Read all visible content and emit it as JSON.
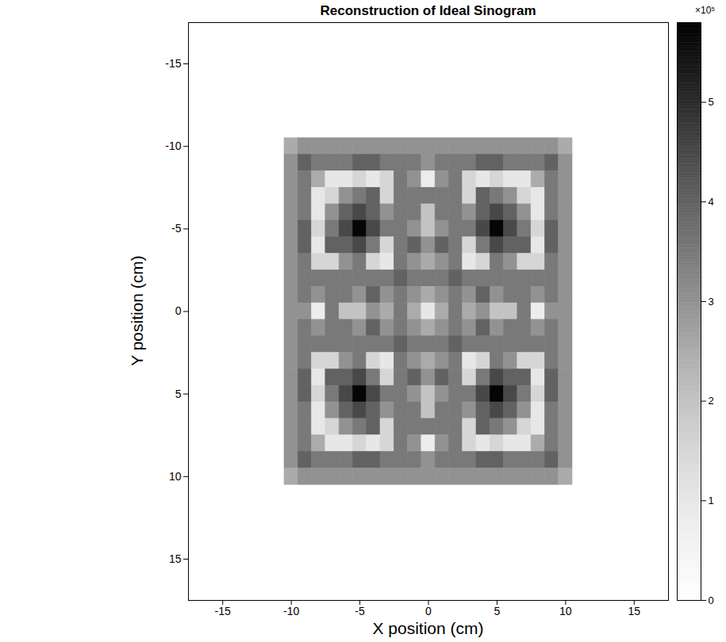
{
  "chart_data": {
    "type": "heatmap",
    "title": "Reconstruction of Ideal Sinogram",
    "x_label": "X position (cm)",
    "y_label": "Y position (cm)",
    "xlim": [
      -17.5,
      17.5
    ],
    "ylim": [
      17.5,
      -17.5
    ],
    "xticks": [
      -15,
      -10,
      -5,
      0,
      5,
      10,
      15
    ],
    "yticks": [
      -15,
      -10,
      -5,
      0,
      5,
      10,
      15
    ],
    "x_edges": [
      -10.5,
      -9.5,
      -8.5,
      -7.5,
      -6.5,
      -5.5,
      -4.5,
      -3.5,
      -2.5,
      -1.5,
      -0.5,
      0.5,
      1.5,
      2.5,
      3.5,
      4.5,
      5.5,
      6.5,
      7.5,
      8.5,
      9.5,
      10.5
    ],
    "y_edges": [
      -10.5,
      -9.5,
      -8.5,
      -7.5,
      -6.5,
      -5.5,
      -4.5,
      -3.5,
      -2.5,
      -1.5,
      -0.5,
      0.5,
      1.5,
      2.5,
      3.5,
      4.5,
      5.5,
      6.5,
      7.5,
      8.5,
      9.5,
      10.5
    ],
    "values": [
      [
        2.5,
        3.0,
        3.0,
        3.0,
        3.0,
        3.0,
        3.0,
        3.0,
        3.0,
        3.0,
        3.0,
        3.0,
        3.0,
        3.0,
        3.0,
        3.0,
        3.0,
        3.0,
        3.0,
        3.0,
        2.5
      ],
      [
        3.0,
        4.0,
        3.5,
        3.5,
        3.5,
        4.0,
        4.0,
        3.5,
        3.5,
        3.5,
        3.0,
        3.5,
        3.5,
        3.5,
        4.0,
        4.0,
        3.5,
        3.5,
        3.5,
        4.0,
        3.0
      ],
      [
        3.0,
        3.5,
        2.5,
        1.0,
        1.0,
        1.5,
        1.0,
        1.5,
        3.5,
        3.0,
        0.8,
        3.0,
        3.5,
        1.5,
        1.0,
        1.5,
        1.0,
        1.0,
        2.5,
        3.5,
        3.0
      ],
      [
        3.0,
        3.5,
        1.0,
        1.5,
        3.0,
        3.5,
        4.0,
        1.5,
        3.5,
        3.5,
        3.5,
        3.5,
        3.5,
        1.5,
        4.0,
        3.5,
        3.0,
        1.5,
        1.0,
        3.5,
        3.0
      ],
      [
        3.0,
        3.5,
        1.0,
        3.0,
        4.0,
        4.5,
        4.0,
        3.0,
        3.5,
        3.5,
        2.0,
        3.5,
        3.5,
        3.0,
        4.0,
        4.5,
        4.0,
        3.0,
        1.0,
        3.5,
        3.0
      ],
      [
        3.0,
        4.0,
        1.5,
        3.5,
        4.5,
        5.7,
        4.5,
        3.5,
        3.5,
        3.0,
        2.0,
        3.0,
        3.5,
        3.5,
        4.5,
        5.7,
        4.5,
        3.5,
        1.5,
        4.0,
        3.0
      ],
      [
        3.0,
        4.0,
        1.0,
        4.0,
        4.0,
        4.5,
        3.5,
        1.5,
        3.5,
        4.0,
        3.0,
        4.0,
        3.5,
        1.5,
        3.5,
        4.5,
        4.0,
        4.0,
        1.0,
        4.0,
        3.0
      ],
      [
        3.0,
        3.5,
        1.5,
        1.5,
        3.0,
        3.5,
        1.5,
        1.0,
        3.5,
        3.0,
        2.5,
        3.0,
        3.5,
        1.0,
        1.5,
        3.5,
        3.0,
        1.5,
        1.5,
        3.5,
        3.0
      ],
      [
        3.0,
        3.5,
        3.5,
        3.5,
        3.5,
        3.5,
        3.5,
        3.5,
        4.0,
        3.5,
        3.5,
        3.5,
        4.0,
        3.5,
        3.5,
        3.5,
        3.5,
        3.5,
        3.5,
        3.5,
        3.0
      ],
      [
        3.0,
        3.5,
        3.0,
        3.5,
        3.5,
        3.0,
        4.0,
        3.0,
        3.5,
        3.0,
        2.5,
        3.0,
        3.5,
        3.0,
        4.0,
        3.0,
        3.5,
        3.5,
        3.0,
        3.5,
        3.0
      ],
      [
        3.0,
        3.0,
        0.8,
        3.5,
        2.0,
        2.0,
        3.0,
        2.5,
        3.5,
        2.5,
        1.0,
        2.5,
        3.5,
        2.5,
        3.0,
        2.0,
        2.0,
        3.5,
        0.8,
        3.0,
        3.0
      ],
      [
        3.0,
        3.5,
        3.0,
        3.5,
        3.5,
        3.0,
        4.0,
        3.0,
        3.5,
        3.0,
        2.5,
        3.0,
        3.5,
        3.0,
        4.0,
        3.0,
        3.5,
        3.5,
        3.0,
        3.5,
        3.0
      ],
      [
        3.0,
        3.5,
        3.5,
        3.5,
        3.5,
        3.5,
        3.5,
        3.5,
        4.0,
        3.5,
        3.5,
        3.5,
        4.0,
        3.5,
        3.5,
        3.5,
        3.5,
        3.5,
        3.5,
        3.5,
        3.0
      ],
      [
        3.0,
        3.5,
        1.5,
        1.5,
        3.0,
        3.5,
        1.5,
        1.0,
        3.5,
        3.0,
        2.5,
        3.0,
        3.5,
        1.0,
        1.5,
        3.5,
        3.0,
        1.5,
        1.5,
        3.5,
        3.0
      ],
      [
        3.0,
        4.0,
        1.0,
        4.0,
        4.0,
        4.5,
        3.5,
        1.5,
        3.5,
        4.0,
        3.0,
        4.0,
        3.5,
        1.5,
        3.5,
        4.5,
        4.0,
        4.0,
        1.0,
        4.0,
        3.0
      ],
      [
        3.0,
        4.0,
        1.5,
        3.5,
        4.5,
        5.7,
        4.5,
        3.5,
        3.5,
        3.0,
        2.0,
        3.0,
        3.5,
        3.5,
        4.5,
        5.7,
        4.5,
        3.5,
        1.5,
        4.0,
        3.0
      ],
      [
        3.0,
        3.5,
        1.0,
        3.0,
        4.0,
        4.5,
        4.0,
        3.0,
        3.5,
        3.5,
        2.0,
        3.5,
        3.5,
        3.0,
        4.0,
        4.5,
        4.0,
        3.0,
        1.0,
        3.5,
        3.0
      ],
      [
        3.0,
        3.5,
        1.0,
        1.5,
        3.0,
        3.5,
        4.0,
        1.5,
        3.5,
        3.5,
        3.5,
        3.5,
        3.5,
        1.5,
        4.0,
        3.5,
        3.0,
        1.5,
        1.0,
        3.5,
        3.0
      ],
      [
        3.0,
        3.5,
        2.5,
        1.0,
        1.0,
        1.5,
        1.0,
        1.5,
        3.5,
        3.0,
        0.8,
        3.0,
        3.5,
        1.5,
        1.0,
        1.5,
        1.0,
        1.0,
        2.5,
        3.5,
        3.0
      ],
      [
        3.0,
        4.0,
        3.5,
        3.5,
        3.5,
        4.0,
        4.0,
        3.5,
        3.5,
        3.5,
        3.0,
        3.5,
        3.5,
        3.5,
        4.0,
        4.0,
        3.5,
        3.5,
        3.5,
        4.0,
        3.0
      ],
      [
        2.5,
        3.0,
        3.0,
        3.0,
        3.0,
        3.0,
        3.0,
        3.0,
        3.0,
        3.0,
        3.0,
        3.0,
        3.0,
        3.0,
        3.0,
        3.0,
        3.0,
        3.0,
        3.0,
        3.0,
        2.5
      ]
    ],
    "colorbar": {
      "range": [
        0,
        5.8
      ],
      "ticks": [
        0,
        1,
        2,
        3,
        4,
        5
      ],
      "label": "×10⁵"
    }
  }
}
